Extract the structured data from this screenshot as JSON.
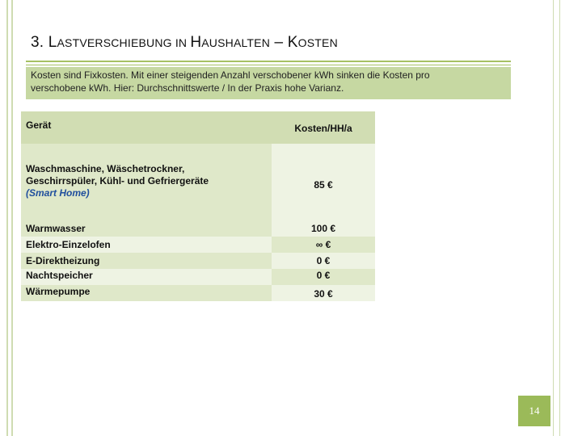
{
  "slide": {
    "title_parts": [
      {
        "text": "3. L",
        "size": "big"
      },
      {
        "text": "ASTVERSCHIEBUNG IN ",
        "size": "small"
      },
      {
        "text": "H",
        "size": "big"
      },
      {
        "text": "AUSHALTEN",
        "size": "small"
      },
      {
        "text": " – K",
        "size": "big"
      },
      {
        "text": "OSTEN",
        "size": "small"
      }
    ],
    "intro_line1": "Kosten sind Fixkosten. Mit einer steigenden Anzahl verschobener kWh sinken die Kosten pro",
    "intro_line2": "verschobene kWh. Hier: Durchschnittswerte / In der Praxis hohe Varianz.",
    "page_number": "14"
  },
  "table": {
    "header": {
      "device": "Gerät",
      "cost": "Kosten/HH/a"
    },
    "row1": {
      "device_line1": "Waschmaschine, Wäschetrockner,",
      "device_line2": "Geschirrspüler, Kühl- und Gefriergeräte",
      "device_note": "(Smart Home)",
      "cost": "85 €"
    },
    "rows": [
      {
        "device": "Warmwasser",
        "cost": "100 €"
      },
      {
        "device": "Elektro-Einzelofen",
        "cost": "∞ €"
      },
      {
        "device": "E-Direktheizung",
        "cost": "0 €"
      },
      {
        "device": "Nachtspeicher",
        "cost": "0 €"
      },
      {
        "device": "Wärmepumpe",
        "cost": "30 €"
      }
    ]
  },
  "colors": {
    "accent": "#9bba59",
    "intro_bg": "#c6d8a2",
    "header_bg": "#d1ddb3",
    "row_green": "#dfe8c9",
    "row_light": "#eef3e3",
    "smart_home_blue": "#1f4e9d"
  }
}
